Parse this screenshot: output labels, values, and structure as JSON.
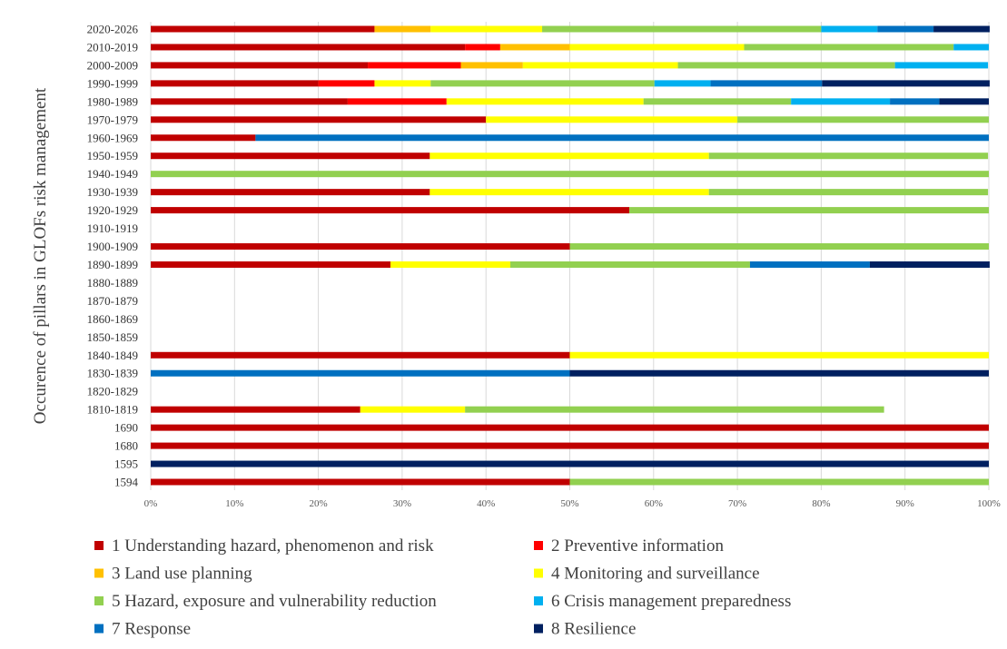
{
  "chart_data": {
    "type": "bar",
    "orientation": "horizontal",
    "stacked": "percent",
    "title": "",
    "xlabel": "",
    "ylabel": "Occurence of pillars in GLOFs risk management",
    "xlim": [
      0,
      100
    ],
    "x_ticks": [
      "0%",
      "10%",
      "20%",
      "30%",
      "40%",
      "50%",
      "60%",
      "70%",
      "80%",
      "90%",
      "100%"
    ],
    "grid": "vertical",
    "legend_position": "bottom",
    "categories": [
      "2020-2026",
      "2010-2019",
      "2000-2009",
      "1990-1999",
      "1980-1989",
      "1970-1979",
      "1960-1969",
      "1950-1959",
      "1940-1949",
      "1930-1939",
      "1920-1929",
      "1910-1919",
      "1900-1909",
      "1890-1899",
      "1880-1889",
      "1870-1879",
      "1860-1869",
      "1850-1859",
      "1840-1849",
      "1830-1839",
      "1820-1829",
      "1810-1819",
      "1690",
      "1680",
      "1595",
      "1594"
    ],
    "series": [
      {
        "name": "1 Understanding hazard, phenomenon and risk",
        "color": "#c00000",
        "values": [
          26.7,
          37.5,
          25.9,
          20.0,
          23.5,
          40.0,
          12.5,
          33.3,
          0,
          33.3,
          57.1,
          0,
          50.0,
          28.6,
          0,
          0,
          0,
          0,
          50.0,
          0,
          0,
          25.0,
          100,
          100,
          0,
          50.0
        ]
      },
      {
        "name": "2 Preventive information",
        "color": "#ff0000",
        "values": [
          0,
          4.2,
          11.1,
          6.7,
          11.8,
          0,
          0,
          0,
          0,
          0,
          0,
          0,
          0,
          0,
          0,
          0,
          0,
          0,
          0,
          0,
          0,
          0,
          0,
          0,
          0,
          0
        ]
      },
      {
        "name": "3 Land use planning",
        "color": "#ffc000",
        "values": [
          6.7,
          8.3,
          7.4,
          0,
          0,
          0,
          0,
          0,
          0,
          0,
          0,
          0,
          0,
          0,
          0,
          0,
          0,
          0,
          0,
          0,
          0,
          0,
          0,
          0,
          0,
          0
        ]
      },
      {
        "name": "4 Monitoring and surveillance",
        "color": "#ffff00",
        "values": [
          13.3,
          20.8,
          18.5,
          6.7,
          23.5,
          30.0,
          0,
          33.3,
          0,
          33.3,
          0,
          0,
          0,
          14.3,
          0,
          0,
          0,
          0,
          50.0,
          0,
          0,
          12.5,
          0,
          0,
          0,
          0
        ]
      },
      {
        "name": "5 Hazard, exposure and vulnerability reduction",
        "color": "#92d050",
        "values": [
          33.3,
          25.0,
          25.9,
          26.7,
          17.6,
          30.0,
          0,
          33.3,
          100,
          33.3,
          42.9,
          0,
          50.0,
          28.6,
          0,
          0,
          0,
          0,
          0,
          0,
          0,
          50.0,
          0,
          0,
          0,
          50.0
        ]
      },
      {
        "name": "6 Crisis management preparedness",
        "color": "#00b0f0",
        "values": [
          6.7,
          4.2,
          11.1,
          6.7,
          11.8,
          0,
          0,
          0,
          0,
          0,
          0,
          0,
          0,
          0,
          0,
          0,
          0,
          0,
          0,
          0,
          0,
          0,
          0,
          0,
          0,
          0
        ]
      },
      {
        "name": "7 Response",
        "color": "#0070c0",
        "values": [
          6.7,
          0,
          0,
          13.3,
          5.9,
          0,
          87.5,
          0,
          0,
          0,
          0,
          0,
          0,
          14.3,
          0,
          0,
          0,
          0,
          0,
          50.0,
          0,
          0,
          0,
          0,
          0,
          0
        ]
      },
      {
        "name": "8 Resilience",
        "color": "#002060",
        "values": [
          6.7,
          0,
          0,
          20.0,
          5.9,
          0,
          0,
          0,
          0,
          0,
          0,
          0,
          0,
          14.3,
          0,
          0,
          0,
          0,
          0,
          50.0,
          0,
          0,
          0,
          0,
          100,
          0
        ]
      }
    ]
  }
}
